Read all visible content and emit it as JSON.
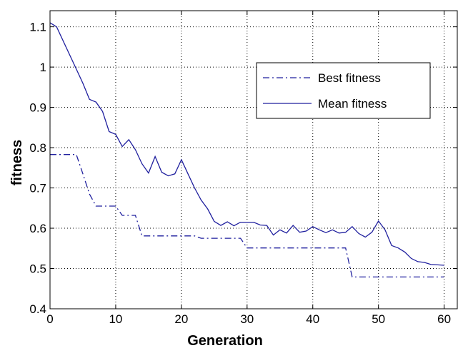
{
  "chart_data": {
    "type": "line",
    "title": "",
    "xlabel": "Generation",
    "ylabel": "fitness",
    "xlim": [
      0,
      62
    ],
    "ylim": [
      0.4,
      1.14
    ],
    "xticks": [
      0,
      10,
      20,
      30,
      40,
      50,
      60
    ],
    "xtick_labels": [
      "0",
      "10",
      "20",
      "30",
      "40",
      "50",
      "60"
    ],
    "yticks": [
      0.4,
      0.5,
      0.6,
      0.7,
      0.8,
      0.9,
      1.0,
      1.1
    ],
    "ytick_labels": [
      "0.4",
      "0.5",
      "0.6",
      "0.7",
      "0.8",
      "0.9",
      "1",
      "1.1"
    ],
    "grid": true,
    "legend_position": "top-right",
    "series": [
      {
        "name": "Best fitness",
        "style": "dash-dot",
        "color": "#1f1f9e",
        "x": [
          0,
          4,
          5,
          6,
          7,
          10,
          11,
          13,
          14,
          22,
          23,
          29,
          30,
          45,
          46,
          60
        ],
        "y": [
          0.783,
          0.783,
          0.735,
          0.685,
          0.655,
          0.655,
          0.632,
          0.632,
          0.581,
          0.581,
          0.575,
          0.575,
          0.551,
          0.551,
          0.479,
          0.479
        ]
      },
      {
        "name": "Mean fitness",
        "style": "solid",
        "color": "#1f1f9e",
        "x": [
          0,
          1,
          2,
          3,
          4,
          5,
          6,
          7,
          8,
          9,
          10,
          11,
          12,
          13,
          14,
          15,
          16,
          17,
          18,
          19,
          20,
          21,
          22,
          23,
          24,
          25,
          26,
          27,
          28,
          29,
          30,
          31,
          32,
          33,
          34,
          35,
          36,
          37,
          38,
          39,
          40,
          41,
          42,
          43,
          44,
          45,
          46,
          47,
          48,
          49,
          50,
          51,
          52,
          53,
          54,
          55,
          56,
          57,
          58,
          59,
          60
        ],
        "y": [
          1.11,
          1.1,
          1.065,
          1.03,
          0.995,
          0.96,
          0.92,
          0.913,
          0.89,
          0.84,
          0.833,
          0.803,
          0.82,
          0.795,
          0.76,
          0.737,
          0.778,
          0.739,
          0.73,
          0.735,
          0.77,
          0.735,
          0.7,
          0.67,
          0.648,
          0.617,
          0.607,
          0.616,
          0.606,
          0.615,
          0.615,
          0.615,
          0.608,
          0.607,
          0.583,
          0.596,
          0.588,
          0.607,
          0.59,
          0.593,
          0.604,
          0.596,
          0.589,
          0.596,
          0.588,
          0.59,
          0.604,
          0.587,
          0.578,
          0.59,
          0.618,
          0.596,
          0.557,
          0.551,
          0.541,
          0.525,
          0.517,
          0.515,
          0.51,
          0.509,
          0.508
        ]
      }
    ]
  }
}
